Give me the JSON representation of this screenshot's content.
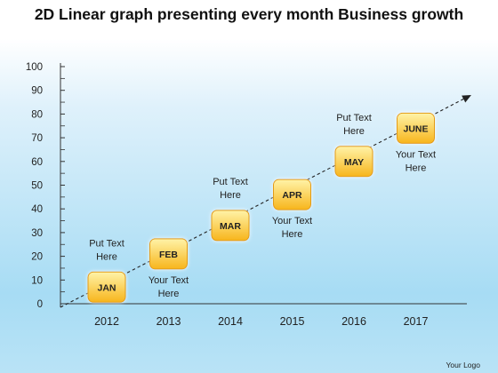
{
  "title": "2D Linear graph presenting every month Business growth",
  "logo_text": "Your Logo",
  "colors": {
    "box_fill_top": "#fff3a8",
    "box_fill_bottom": "#f7b51c",
    "box_stroke": "#e39b12",
    "axis": "#333333",
    "trend_line": "#222222"
  },
  "chart_data": {
    "type": "line",
    "title": "2D Linear graph presenting every month Business growth",
    "xlabel": "",
    "ylabel": "",
    "ylim": [
      0,
      100
    ],
    "y_ticks": [
      "0",
      "10",
      "20",
      "30",
      "40",
      "50",
      "60",
      "70",
      "80",
      "90",
      "100"
    ],
    "x_ticks": [
      "2012",
      "2013",
      "2014",
      "2015",
      "2016",
      "2017"
    ],
    "grid": false,
    "trend_arrow": true,
    "points": [
      {
        "label": "JAN",
        "year_pos": 0,
        "value": 7,
        "note": [
          "Put Text",
          "Here"
        ],
        "note_side": "above"
      },
      {
        "label": "FEB",
        "year_pos": 1,
        "value": 21,
        "note": [
          "Your Text",
          "Here"
        ],
        "note_side": "below"
      },
      {
        "label": "MAR",
        "year_pos": 2,
        "value": 33,
        "note": [
          "Put Text",
          "Here"
        ],
        "note_side": "above"
      },
      {
        "label": "APR",
        "year_pos": 3,
        "value": 46,
        "note": [
          "Your Text",
          "Here"
        ],
        "note_side": "below"
      },
      {
        "label": "MAY",
        "year_pos": 4,
        "value": 60,
        "note": [
          "Put Text",
          "Here"
        ],
        "note_side": "above"
      },
      {
        "label": "JUNE",
        "year_pos": 5,
        "value": 74,
        "note": [
          "Your Text",
          "Here"
        ],
        "note_side": "below"
      }
    ]
  }
}
